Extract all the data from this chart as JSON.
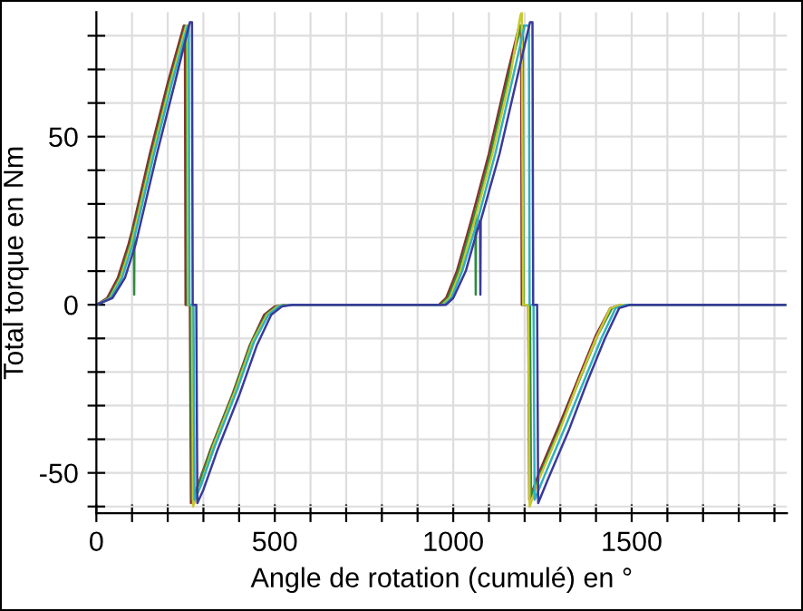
{
  "chart_data": {
    "type": "line",
    "xlabel": "Angle de rotation (cumulé) en °",
    "ylabel": "Total torque en Nm",
    "xlim": [
      0,
      1935
    ],
    "ylim": [
      -62,
      87
    ],
    "xticks": [
      0,
      {
        "value": 100,
        "label": null
      },
      {
        "value": 200,
        "label": null
      },
      {
        "value": 300,
        "label": null
      },
      {
        "value": 400,
        "label": null
      },
      500,
      {
        "value": 600,
        "label": null
      },
      {
        "value": 700,
        "label": null
      },
      {
        "value": 800,
        "label": null
      },
      {
        "value": 900,
        "label": null
      },
      1000,
      {
        "value": 1100,
        "label": null
      },
      {
        "value": 1200,
        "label": null
      },
      {
        "value": 1300,
        "label": null
      },
      {
        "value": 1400,
        "label": null
      },
      1500,
      {
        "value": 1600,
        "label": null
      },
      {
        "value": 1700,
        "label": null
      },
      {
        "value": 1800,
        "label": null
      },
      {
        "value": 1900,
        "label": null
      }
    ],
    "yticks": [
      {
        "value": -60,
        "label": null
      },
      -50,
      {
        "value": -40,
        "label": null
      },
      {
        "value": -30,
        "label": null
      },
      {
        "value": -20,
        "label": null
      },
      {
        "value": -10,
        "label": null
      },
      0,
      {
        "value": 10,
        "label": null
      },
      {
        "value": 20,
        "label": null
      },
      {
        "value": 30,
        "label": null
      },
      {
        "value": 40,
        "label": null
      },
      50,
      {
        "value": 60,
        "label": null
      },
      {
        "value": 70,
        "label": null
      },
      {
        "value": 80,
        "label": null
      }
    ],
    "grid": true,
    "marker": "none",
    "line_style": "solid",
    "series": [
      {
        "color": "#8b2e2e",
        "x": [
          0,
          30,
          60,
          90,
          100,
          150,
          200,
          245,
          248,
          250,
          262,
          265,
          280,
          320,
          380,
          430,
          470,
          500,
          530,
          960,
          980,
          1010,
          1050,
          1100,
          1150,
          1185,
          1190,
          1192,
          1210,
          1213,
          1240,
          1300,
          1350,
          1400,
          1440,
          1470,
          1930
        ],
        "values": [
          0,
          2,
          8,
          18,
          22,
          45,
          66,
          83,
          83,
          0,
          0,
          -59,
          -55,
          -43,
          -27,
          -12,
          -3,
          -0.5,
          0,
          0,
          2,
          10,
          25,
          45,
          68,
          83,
          83,
          0,
          0,
          -58,
          -50,
          -35,
          -22,
          -9,
          -1,
          0,
          0
        ]
      },
      {
        "color": "#2e8b3e",
        "x": [
          0,
          35,
          65,
          95,
          105,
          106,
          107,
          155,
          205,
          250,
          253,
          255,
          265,
          268,
          285,
          325,
          385,
          435,
          475,
          505,
          535,
          965,
          985,
          1015,
          1055,
          1062,
          1063,
          1064,
          1105,
          1155,
          1190,
          1195,
          1197,
          1215,
          1218,
          1245,
          1305,
          1355,
          1405,
          1445,
          1475,
          1930
        ],
        "values": [
          0,
          2,
          8,
          18,
          23,
          3,
          23,
          45,
          66,
          83,
          83,
          0,
          0,
          -58,
          -54,
          -42,
          -26,
          -11,
          -3,
          -0.5,
          0,
          0,
          2,
          10,
          25,
          28,
          3,
          28,
          45,
          68,
          83,
          83,
          0,
          0,
          -57,
          -50,
          -35,
          -22,
          -9,
          -1,
          0,
          0
        ]
      },
      {
        "color": "#c8c832",
        "x": [
          0,
          38,
          68,
          98,
          158,
          208,
          252,
          255,
          257,
          268,
          271,
          288,
          328,
          388,
          438,
          478,
          508,
          538,
          970,
          990,
          1020,
          1060,
          1110,
          1160,
          1188,
          1192,
          1196,
          1210,
          1214,
          1240,
          1300,
          1350,
          1400,
          1440,
          1470,
          1930
        ],
        "values": [
          0,
          2,
          8,
          18,
          45,
          66,
          83,
          83,
          0,
          0,
          -60,
          -55,
          -42,
          -26,
          -11,
          -3,
          -0.5,
          0,
          0,
          2,
          10,
          25,
          45,
          68,
          86,
          87,
          0,
          0,
          -60,
          -52,
          -37,
          -23,
          -10,
          -1,
          0,
          0
        ]
      },
      {
        "color": "#30b0c0",
        "x": [
          0,
          40,
          72,
          102,
          162,
          212,
          256,
          259,
          261,
          272,
          275,
          292,
          332,
          392,
          442,
          482,
          512,
          542,
          975,
          995,
          1025,
          1068,
          1118,
          1168,
          1200,
          1212,
          1214,
          1225,
          1228,
          1255,
          1315,
          1365,
          1415,
          1455,
          1485,
          1930
        ],
        "values": [
          0,
          2,
          8,
          18,
          45,
          66,
          83,
          83,
          0,
          0,
          -58,
          -54,
          -42,
          -26,
          -11,
          -3,
          -0.5,
          0,
          0,
          2,
          10,
          25,
          45,
          68,
          83,
          83,
          0,
          0,
          -58,
          -51,
          -36,
          -23,
          -10,
          -1,
          0,
          0
        ]
      },
      {
        "color": "#3a3a9a",
        "x": [
          0,
          45,
          80,
          110,
          170,
          220,
          262,
          268,
          270,
          280,
          283,
          300,
          340,
          400,
          450,
          490,
          520,
          550,
          980,
          1000,
          1035,
          1075,
          1076,
          1077,
          1130,
          1180,
          1215,
          1222,
          1224,
          1235,
          1238,
          1265,
          1325,
          1375,
          1425,
          1465,
          1495,
          1930
        ],
        "values": [
          0,
          2,
          8,
          18,
          45,
          66,
          84,
          84,
          0,
          0,
          -59,
          -55,
          -43,
          -27,
          -12,
          -3,
          -0.5,
          0,
          0,
          2,
          10,
          25,
          3,
          25,
          45,
          68,
          84,
          84,
          0,
          0,
          -59,
          -52,
          -37,
          -23,
          -10,
          -1,
          0,
          0
        ]
      }
    ]
  }
}
